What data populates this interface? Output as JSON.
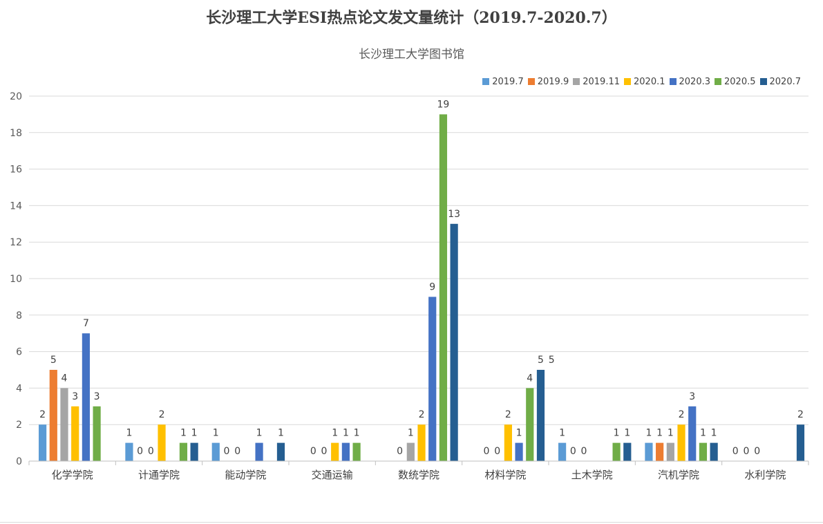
{
  "chart_data": {
    "type": "bar",
    "title": "长沙理工大学ESI热点论文发文量统计（2019.7-2020.7）",
    "subtitle": "长沙理工大学图书馆",
    "xlabel": "",
    "ylabel": "",
    "ylim": [
      0,
      20
    ],
    "yticks": [
      "0",
      "2",
      "4",
      "6",
      "8",
      "10",
      "12",
      "14",
      "16",
      "18",
      "20"
    ],
    "grid": true,
    "legend_position": "top-right",
    "categories": [
      "化学学院",
      "计通学院",
      "能动学院",
      "交通运输",
      "数统学院",
      "材料学院",
      "土木学院",
      "汽机学院",
      "水利学院"
    ],
    "series": [
      {
        "name": "2019.7",
        "color": "#5B9BD5",
        "values": [
          2,
          1,
          1,
          null,
          null,
          null,
          1,
          1,
          0
        ]
      },
      {
        "name": "2019.9",
        "color": "#ED7D31",
        "values": [
          5,
          0,
          0,
          0,
          0,
          0,
          0,
          1,
          0
        ]
      },
      {
        "name": "2019.11",
        "color": "#A5A5A5",
        "values": [
          4,
          0,
          0,
          0,
          1,
          0,
          0,
          1,
          0
        ]
      },
      {
        "name": "2020.1",
        "color": "#FFC000",
        "values": [
          3,
          2,
          null,
          1,
          2,
          2,
          null,
          2,
          null
        ]
      },
      {
        "name": "2020.3",
        "color": "#4472C4",
        "values": [
          7,
          null,
          1,
          1,
          9,
          1,
          null,
          3,
          null
        ]
      },
      {
        "name": "2020.5",
        "color": "#70AD47",
        "values": [
          3,
          1,
          null,
          1,
          19,
          4,
          1,
          1,
          null
        ]
      },
      {
        "name": "2020.7",
        "color": "#255E91",
        "values": [
          null,
          1,
          1,
          null,
          13,
          5,
          1,
          1,
          2
        ]
      }
    ],
    "data_labels": [
      {
        "text": "2",
        "category": 0,
        "slot": 0,
        "value": 2
      },
      {
        "text": "5",
        "category": 0,
        "slot": 1,
        "value": 5
      },
      {
        "text": "4",
        "category": 0,
        "slot": 2,
        "value": 4
      },
      {
        "text": "3",
        "category": 0,
        "slot": 3,
        "value": 3
      },
      {
        "text": "7",
        "category": 0,
        "slot": 4,
        "value": 7
      },
      {
        "text": "3",
        "category": 0,
        "slot": 5,
        "value": 3
      },
      {
        "text": "1",
        "category": 1,
        "slot": 0,
        "value": 1
      },
      {
        "text": "0",
        "category": 1,
        "slot": 1,
        "value": 0
      },
      {
        "text": "0",
        "category": 1,
        "slot": 2,
        "value": 0
      },
      {
        "text": "2",
        "category": 1,
        "slot": 3,
        "value": 2
      },
      {
        "text": "1",
        "category": 1,
        "slot": 5,
        "value": 1
      },
      {
        "text": "1",
        "category": 1,
        "slot": 6,
        "value": 1
      },
      {
        "text": "1",
        "category": 2,
        "slot": 0,
        "value": 1
      },
      {
        "text": "0",
        "category": 2,
        "slot": 1,
        "value": 0
      },
      {
        "text": "0",
        "category": 2,
        "slot": 2,
        "value": 0
      },
      {
        "text": "1",
        "category": 2,
        "slot": 4,
        "value": 1
      },
      {
        "text": "1",
        "category": 2,
        "slot": 6,
        "value": 1
      },
      {
        "text": "0",
        "category": 3,
        "slot": 1,
        "value": 0
      },
      {
        "text": "0",
        "category": 3,
        "slot": 2,
        "value": 0
      },
      {
        "text": "1",
        "category": 3,
        "slot": 3,
        "value": 1
      },
      {
        "text": "1",
        "category": 3,
        "slot": 4,
        "value": 1
      },
      {
        "text": "1",
        "category": 3,
        "slot": 5,
        "value": 1
      },
      {
        "text": "0",
        "category": 4,
        "slot": 1,
        "value": 0
      },
      {
        "text": "1",
        "category": 4,
        "slot": 2,
        "value": 1
      },
      {
        "text": "2",
        "category": 4,
        "slot": 3,
        "value": 2
      },
      {
        "text": "9",
        "category": 4,
        "slot": 4,
        "value": 9
      },
      {
        "text": "19",
        "category": 4,
        "slot": 5,
        "value": 19
      },
      {
        "text": "13",
        "category": 4,
        "slot": 6,
        "value": 13
      },
      {
        "text": "0",
        "category": 5,
        "slot": 1,
        "value": 0
      },
      {
        "text": "0",
        "category": 5,
        "slot": 2,
        "value": 0
      },
      {
        "text": "2",
        "category": 5,
        "slot": 3,
        "value": 2
      },
      {
        "text": "1",
        "category": 5,
        "slot": 4,
        "value": 1
      },
      {
        "text": "4",
        "category": 5,
        "slot": 5,
        "value": 4
      },
      {
        "text": "5",
        "category": 5,
        "slot": 6,
        "value": 5
      },
      {
        "text": "5",
        "category": 5,
        "slot": 7,
        "value": 5
      },
      {
        "text": "1",
        "category": 6,
        "slot": 0,
        "value": 1
      },
      {
        "text": "0",
        "category": 6,
        "slot": 1,
        "value": 0
      },
      {
        "text": "0",
        "category": 6,
        "slot": 2,
        "value": 0
      },
      {
        "text": "1",
        "category": 6,
        "slot": 5,
        "value": 1
      },
      {
        "text": "1",
        "category": 6,
        "slot": 6,
        "value": 1
      },
      {
        "text": "1",
        "category": 7,
        "slot": 0,
        "value": 1
      },
      {
        "text": "1",
        "category": 7,
        "slot": 1,
        "value": 1
      },
      {
        "text": "1",
        "category": 7,
        "slot": 2,
        "value": 1
      },
      {
        "text": "2",
        "category": 7,
        "slot": 3,
        "value": 2
      },
      {
        "text": "3",
        "category": 7,
        "slot": 4,
        "value": 3
      },
      {
        "text": "1",
        "category": 7,
        "slot": 5,
        "value": 1
      },
      {
        "text": "1",
        "category": 7,
        "slot": 6,
        "value": 1
      },
      {
        "text": "0",
        "category": 8,
        "slot": 0,
        "value": 0
      },
      {
        "text": "0",
        "category": 8,
        "slot": 1,
        "value": 0
      },
      {
        "text": "0",
        "category": 8,
        "slot": 2,
        "value": 0
      },
      {
        "text": "2",
        "category": 8,
        "slot": 6,
        "value": 2
      }
    ]
  }
}
